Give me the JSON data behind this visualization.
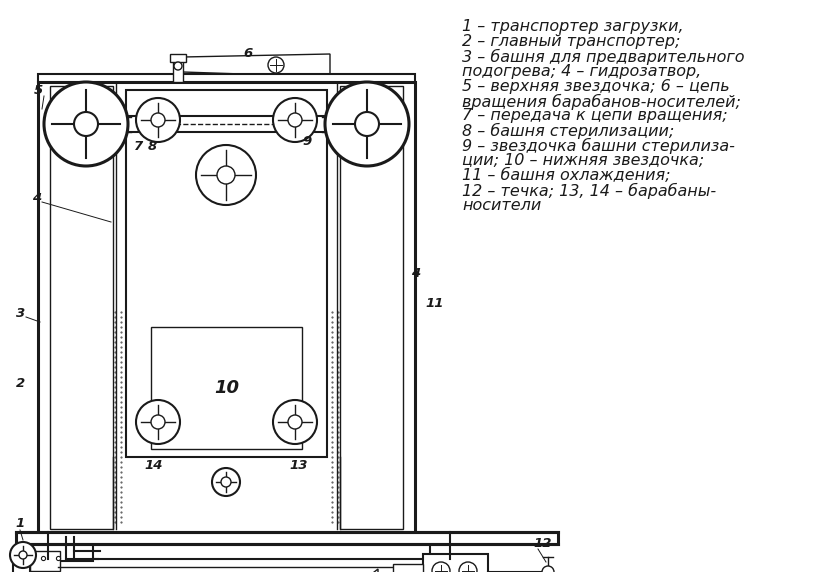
{
  "bg_color": "#ffffff",
  "line_color": "#1a1a1a",
  "text_color": "#1a1a1a",
  "legend_lines": [
    "1 – транспортер загрузки,",
    "2 – главный транспортер;",
    "3 – башня для предварительного",
    "подогрева; 4 – гидрозатвор,",
    "5 – верхняя звездочка; 6 – цепь",
    "вращения барабанов-носителей;",
    "7 – передача к цепи вращения;",
    "8 – башня стерилизации;",
    "9 – звездочка башни стерилиза-",
    "ции; 10 – нижняя звездочка;",
    "11 – башня охлаждения;",
    "12 – течка; 13, 14 – барабаны-",
    "носители"
  ],
  "legend_fontsize": 11.5
}
